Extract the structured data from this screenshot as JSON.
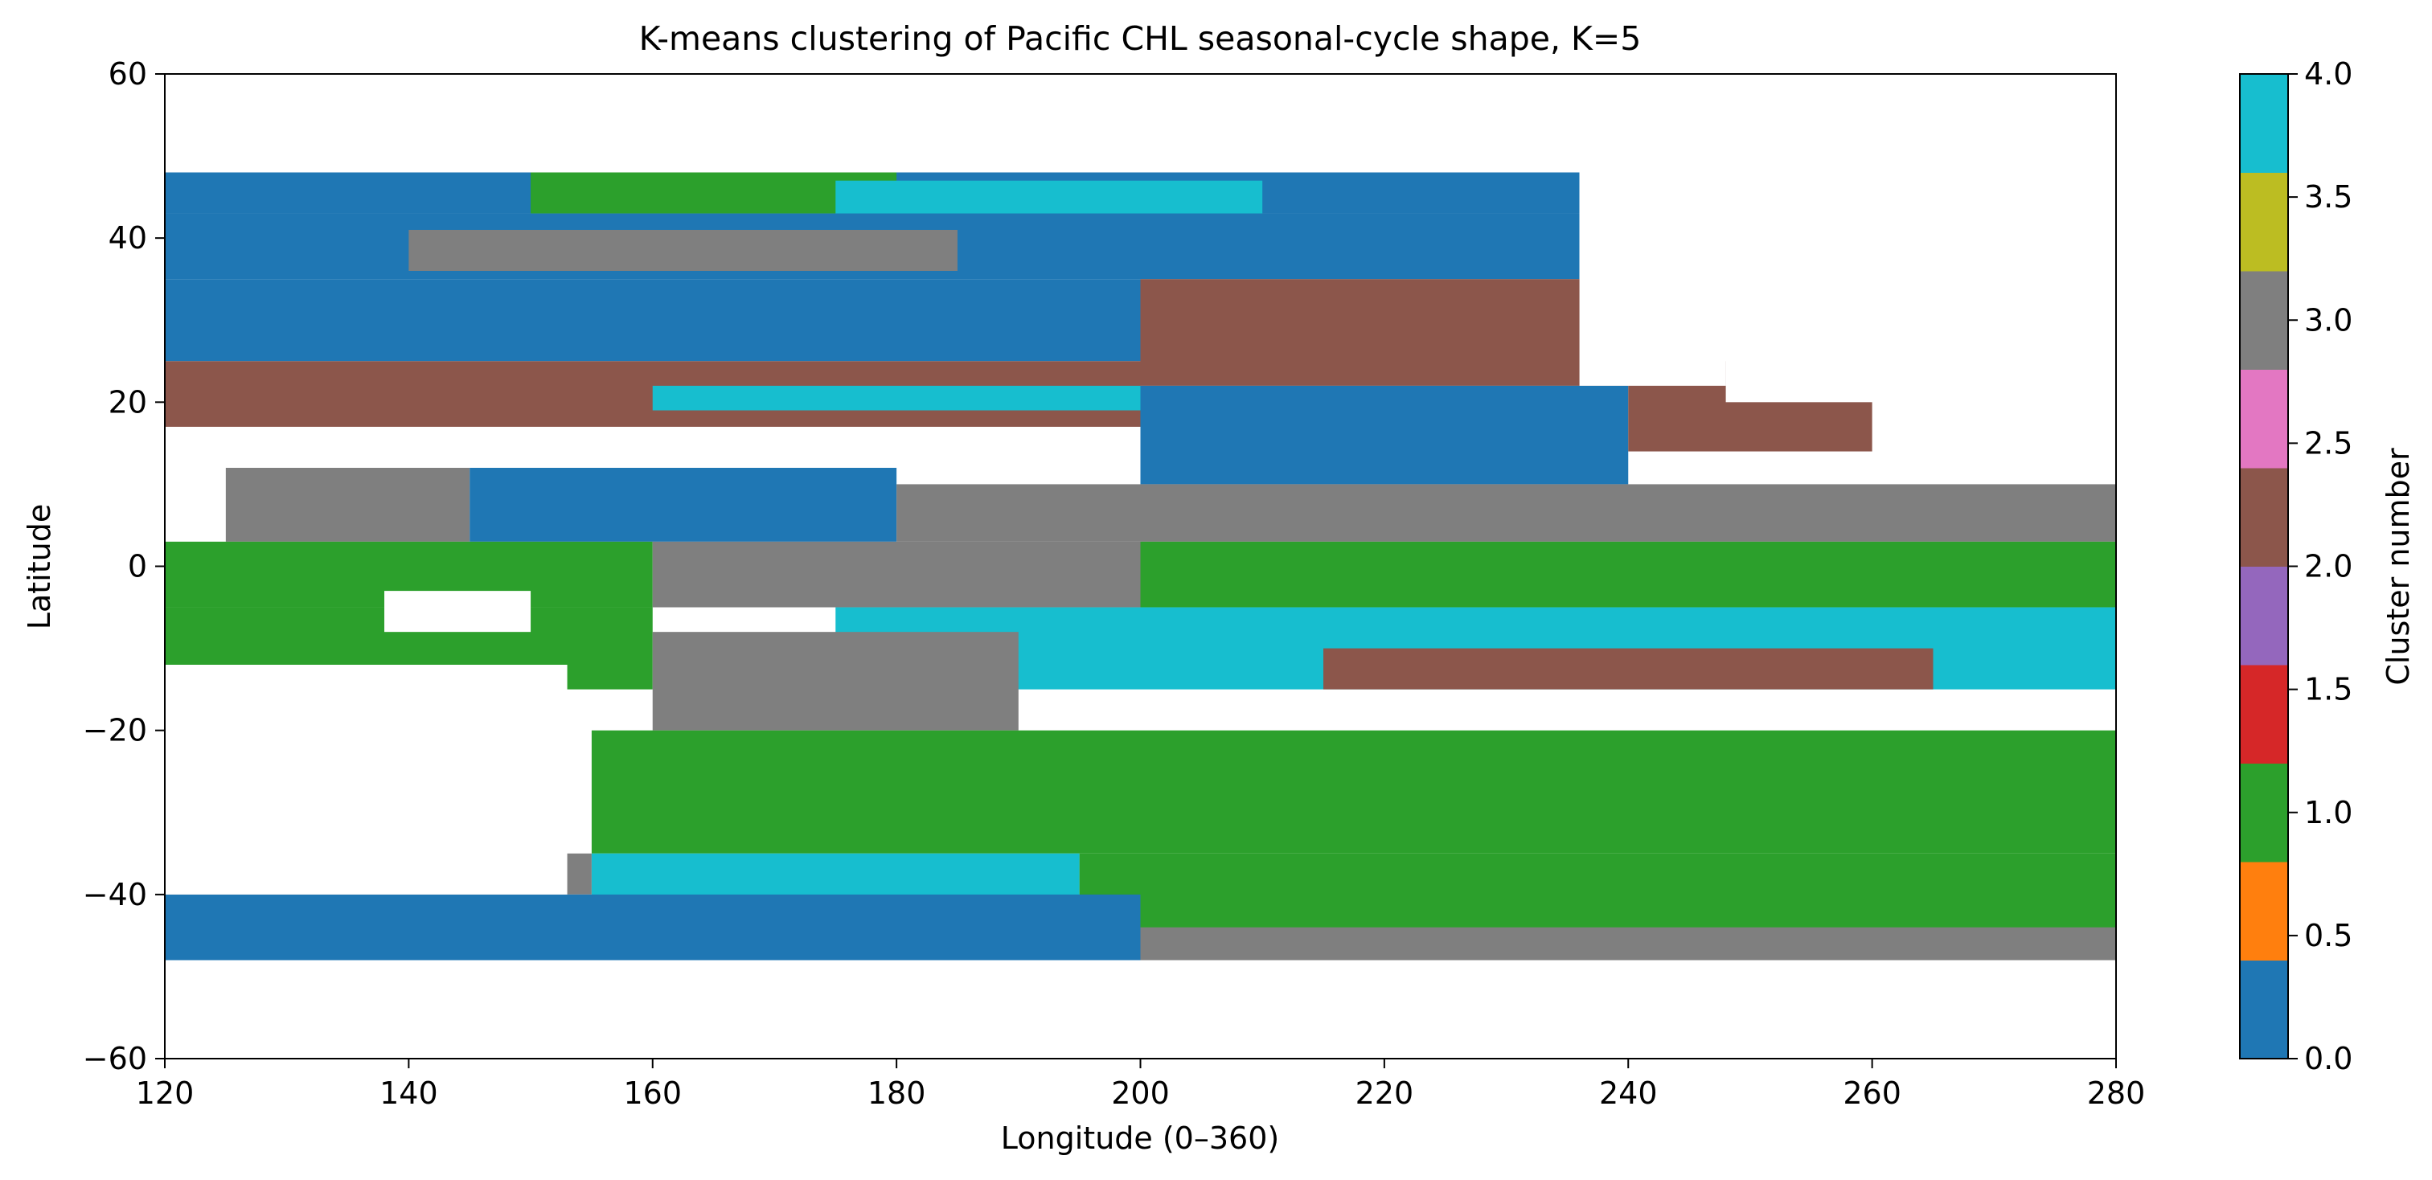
{
  "chart_data": {
    "type": "heatmap",
    "title": "K-means clustering of Pacific CHL seasonal-cycle shape, K=5",
    "xlabel": "Longitude (0–360)",
    "ylabel": "Latitude",
    "xlim": [
      120,
      280
    ],
    "ylim": [
      -60,
      60
    ],
    "data_lat_range": [
      -48,
      48
    ],
    "xticks": [
      120,
      140,
      160,
      180,
      200,
      220,
      240,
      260,
      280
    ],
    "yticks": [
      -60,
      -40,
      -20,
      0,
      20,
      40,
      60
    ],
    "colorbar": {
      "label": "Cluster number",
      "range": [
        0,
        4
      ],
      "ticks": [
        "0.0",
        "0.5",
        "1.0",
        "1.5",
        "2.0",
        "2.5",
        "3.0",
        "3.5",
        "4.0"
      ],
      "colors": [
        "#1f77b4",
        "#ff7f0e",
        "#2ca02c",
        "#d62728",
        "#9467bd",
        "#8c564b",
        "#e377c2",
        "#7f7f7f",
        "#bcbd22",
        "#17becf"
      ]
    },
    "cluster_colors": {
      "0": "#1f77b4",
      "1": "#2ca02c",
      "2": "#8c564b",
      "3": "#7f7f7f",
      "4": "#17becf"
    },
    "cluster_bands": [
      {
        "lat": [
          43,
          48
        ],
        "lon": [
          120,
          236
        ],
        "cluster": 0
      },
      {
        "lat": [
          43,
          48
        ],
        "lon": [
          150,
          180
        ],
        "cluster": 1
      },
      {
        "lat": [
          40,
          47
        ],
        "lon": [
          175,
          210
        ],
        "cluster": 4
      },
      {
        "lat": [
          35,
          43
        ],
        "lon": [
          120,
          236
        ],
        "cluster": 0
      },
      {
        "lat": [
          36,
          41
        ],
        "lon": [
          140,
          185
        ],
        "cluster": 3
      },
      {
        "lat": [
          25,
          35
        ],
        "lon": [
          120,
          200
        ],
        "cluster": 0
      },
      {
        "lat": [
          22,
          35
        ],
        "lon": [
          200,
          240
        ],
        "cluster": 2
      },
      {
        "lat": [
          17,
          25
        ],
        "lon": [
          120,
          200
        ],
        "cluster": 2
      },
      {
        "lat": [
          19,
          22
        ],
        "lon": [
          160,
          200
        ],
        "cluster": 4
      },
      {
        "lat": [
          10,
          22
        ],
        "lon": [
          200,
          240
        ],
        "cluster": 0
      },
      {
        "lat": [
          14,
          25
        ],
        "lon": [
          240,
          260
        ],
        "cluster": 2
      },
      {
        "lat": [
          3,
          12
        ],
        "lon": [
          125,
          145
        ],
        "cluster": 3
      },
      {
        "lat": [
          3,
          12
        ],
        "lon": [
          145,
          180
        ],
        "cluster": 0
      },
      {
        "lat": [
          3,
          10
        ],
        "lon": [
          180,
          280
        ],
        "cluster": 3
      },
      {
        "lat": [
          -5,
          3
        ],
        "lon": [
          120,
          160
        ],
        "cluster": 1
      },
      {
        "lat": [
          -5,
          3
        ],
        "lon": [
          160,
          200
        ],
        "cluster": 3
      },
      {
        "lat": [
          -5,
          3
        ],
        "lon": [
          200,
          280
        ],
        "cluster": 1
      },
      {
        "lat": [
          -15,
          -5
        ],
        "lon": [
          120,
          160
        ],
        "cluster": 1
      },
      {
        "lat": [
          -15,
          -5
        ],
        "lon": [
          175,
          280
        ],
        "cluster": 4
      },
      {
        "lat": [
          -20,
          -8
        ],
        "lon": [
          160,
          190
        ],
        "cluster": 3
      },
      {
        "lat": [
          -15,
          -10
        ],
        "lon": [
          215,
          265
        ],
        "cluster": 2
      },
      {
        "lat": [
          -35,
          -20
        ],
        "lon": [
          155,
          280
        ],
        "cluster": 1
      },
      {
        "lat": [
          -40,
          -35
        ],
        "lon": [
          120,
          155
        ],
        "cluster": 3
      },
      {
        "lat": [
          -45,
          -35
        ],
        "lon": [
          155,
          195
        ],
        "cluster": 4
      },
      {
        "lat": [
          -45,
          -35
        ],
        "lon": [
          195,
          280
        ],
        "cluster": 1
      },
      {
        "lat": [
          -48,
          -40
        ],
        "lon": [
          120,
          200
        ],
        "cluster": 0
      },
      {
        "lat": [
          -48,
          -44
        ],
        "lon": [
          200,
          280
        ],
        "cluster": 3
      }
    ],
    "land_regions": [
      {
        "lat": [
          -40,
          -12
        ],
        "lon": [
          120,
          153
        ]
      },
      {
        "lat": [
          -3,
          -8
        ],
        "lon": [
          138,
          150
        ]
      },
      {
        "lat": [
          22,
          48
        ],
        "lon": [
          236,
          248
        ]
      },
      {
        "lat": [
          20,
          30
        ],
        "lon": [
          248,
          265
        ]
      }
    ]
  }
}
